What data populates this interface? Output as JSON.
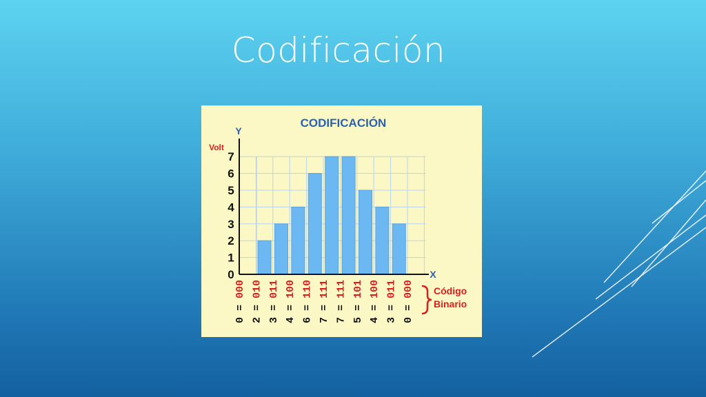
{
  "slide": {
    "title": "Codificación"
  },
  "chart_data": {
    "type": "bar",
    "title": "CODIFICACIÓN",
    "xlabel": "X",
    "ylabel": "Y",
    "y_unit": "Volt",
    "ylim": [
      0,
      7
    ],
    "yticks": [
      "0",
      "1",
      "2",
      "3",
      "4",
      "5",
      "6",
      "7"
    ],
    "grid": true,
    "values": [
      0,
      2,
      3,
      4,
      6,
      7,
      7,
      5,
      4,
      3,
      0
    ],
    "codes": [
      "0 = 000",
      "2 = 010",
      "3 = 011",
      "4 = 100",
      "6 = 110",
      "7 = 111",
      "7 = 111",
      "5 = 101",
      "4 = 100",
      "3 = 011",
      "0 = 000"
    ],
    "code_label": [
      "Código",
      "Binario"
    ],
    "colors": {
      "bar": "#6cb8f2",
      "bar_edge": "#5aa3dc",
      "grid": "#b8d4f0",
      "axis": "#111111",
      "title": "#2b62ad",
      "red": "#d81e1e",
      "background": "#fbf8c6"
    }
  }
}
